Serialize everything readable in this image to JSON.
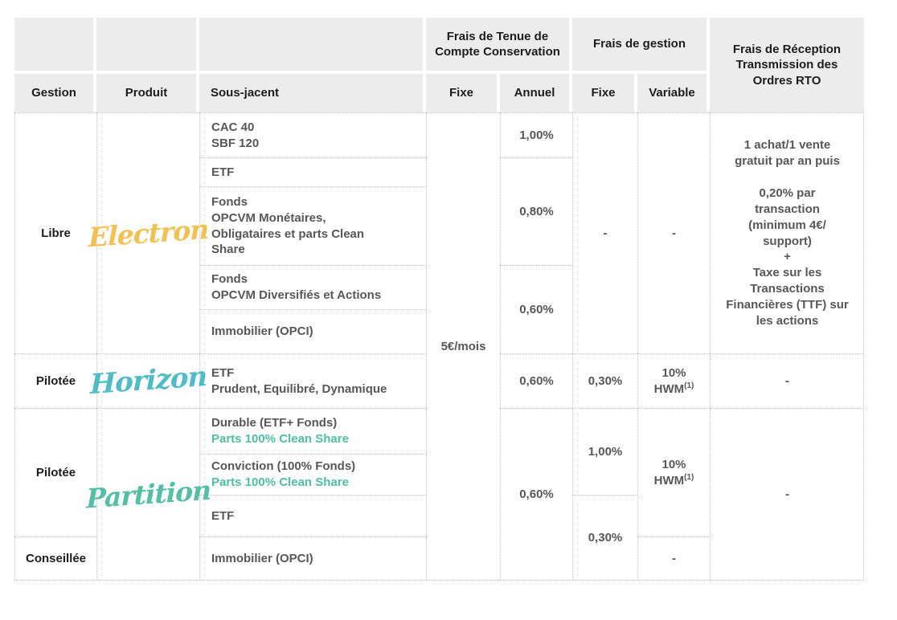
{
  "colors": {
    "header_bg": "#ececec",
    "header_text": "#1d1d1b",
    "body_text": "#58585a",
    "dotted_border": "#c4c4c4",
    "electron_logo": "#f2c14f",
    "horizon_logo": "#4fbdc5",
    "partition_logo": "#52bfa6",
    "clean_share_text": "#4fbfa3"
  },
  "header": {
    "group_tenue": "Frais de Tenue de\nCompte Conservation",
    "group_gestion": "Frais de gestion",
    "group_rto": "Frais  de Réception\nTransmission des\nOrdres RTO",
    "col_gestion": "Gestion",
    "col_produit": "Produit",
    "col_sous_jacent": "Sous-jacent",
    "col_tenue_fixe": "Fixe",
    "col_annuel": "Annuel",
    "col_gestion_fixe": "Fixe",
    "col_variable": "Variable"
  },
  "gestion": {
    "libre": "Libre",
    "pilotee_horizon": "Pilotée",
    "pilotee_partition": "Pilotée",
    "conseillee": "Conseillée"
  },
  "produits": {
    "electron": "Electron",
    "horizon": "Horizon",
    "partition": "Partition"
  },
  "sous_jacent": {
    "cac": "CAC 40\nSBF 120",
    "etf_electron": "ETF",
    "fonds_monetaires": "Fonds\nOPCVM Monétaires,\nObligataires et parts Clean\nShare",
    "fonds_diversifies": "Fonds\nOPCVM Diversifiés et Actions",
    "immobilier_electron": "Immobilier (OPCI)",
    "etf_horizon": "ETF\nPrudent, Equilibré, Dynamique",
    "durable_main": "Durable (ETF+ Fonds)",
    "durable_sub": "Parts 100% Clean Share",
    "conviction_main": "Conviction (100% Fonds)",
    "conviction_sub": "Parts 100% Clean Share",
    "etf_partition": "ETF",
    "immobilier_conseillee": "Immobilier (OPCI)"
  },
  "tenue_compte": {
    "fixe_all": "5€/mois"
  },
  "annuel": {
    "cac": "1,00%",
    "etf_et_monetaires": "0,80%",
    "diversifies_et_immo": "0,60%",
    "horizon": "0,60%",
    "partition": "0,60%"
  },
  "gestion_fixe": {
    "electron": "-",
    "horizon": "0,30%",
    "partition_haut": "1,00%",
    "partition_bas": "0,30%"
  },
  "variable": {
    "electron": "-",
    "horizon": {
      "l1": "10%",
      "l2": "HWM",
      "sup": "(1)"
    },
    "partition": {
      "l1": "10%",
      "l2": "HWM",
      "sup": "(1)"
    },
    "conseillee": "-"
  },
  "rto": {
    "electron": "1 achat/1 vente\ngratuit par an puis\n\n0,20% par\ntransaction\n(minimum 4€/\nsupport)\n+\nTaxe sur les\nTransactions\nFinancières (TTF) sur\nles actions",
    "horizon": "-",
    "partition": "-"
  }
}
